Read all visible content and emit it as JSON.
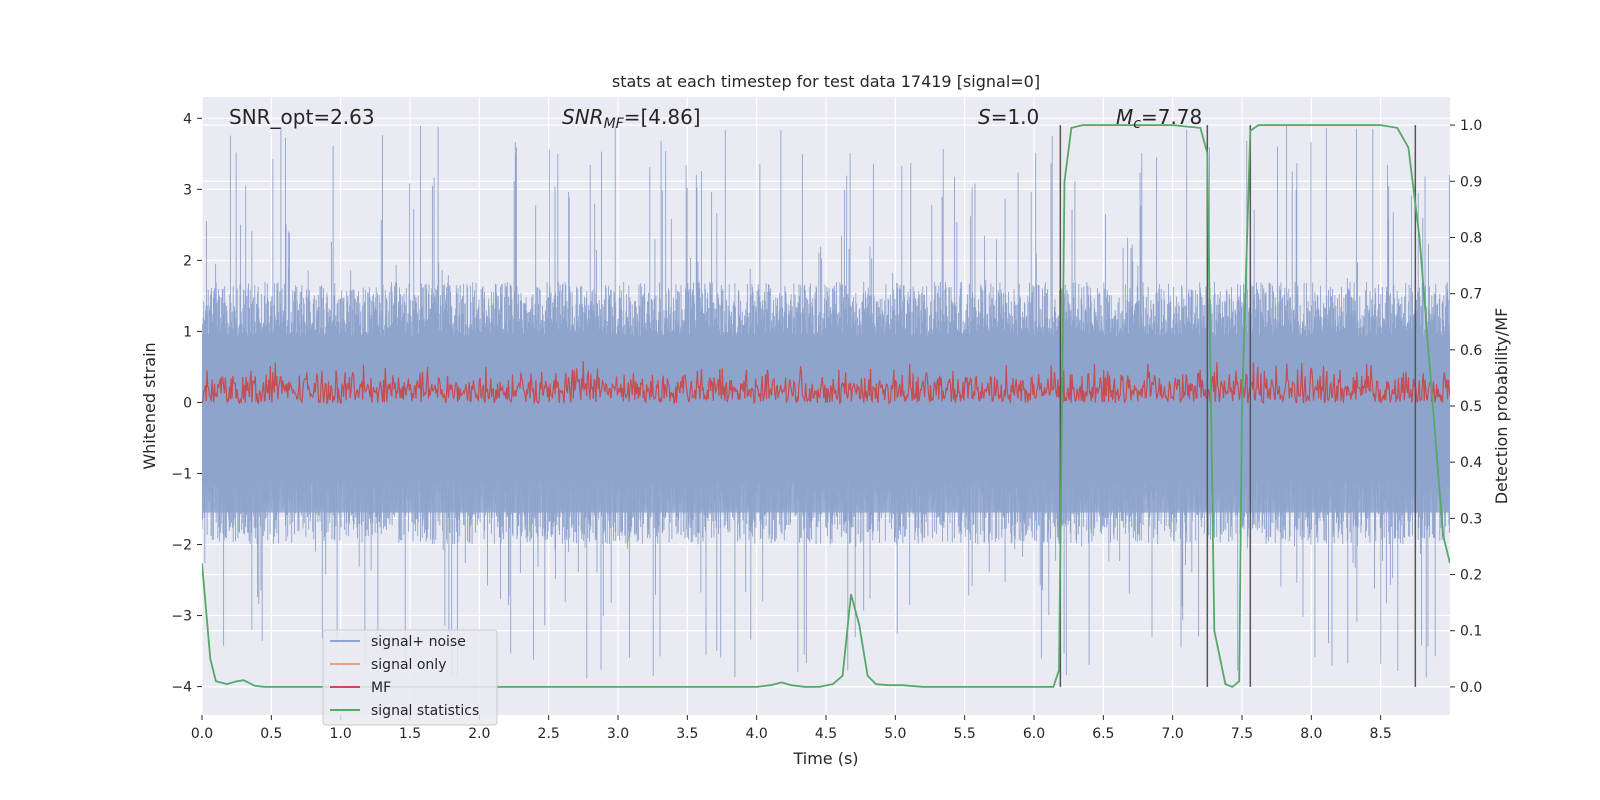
{
  "chart_data": {
    "type": "line",
    "title": "stats at each timestep for test data 17419 [signal=0]",
    "xlabel": "Time (s)",
    "ylabel": "Whitened strain",
    "y2label": "Detection probability/MF",
    "xlim": [
      0.0,
      9.0
    ],
    "ylim": [
      -4.4,
      4.3
    ],
    "y2lim": [
      -0.05,
      1.05
    ],
    "x_ticks": [
      "0.0",
      "0.5",
      "1.0",
      "1.5",
      "2.0",
      "2.5",
      "3.0",
      "3.5",
      "4.0",
      "4.5",
      "5.0",
      "5.5",
      "6.0",
      "6.5",
      "7.0",
      "7.5",
      "8.0",
      "8.5"
    ],
    "y_ticks": [
      "4",
      "3",
      "2",
      "1",
      "0",
      "−1",
      "−2",
      "−3",
      "−4"
    ],
    "y2_ticks": [
      "1.0",
      "0.9",
      "0.8",
      "0.7",
      "0.6",
      "0.5",
      "0.4",
      "0.3",
      "0.2",
      "0.1",
      "0.0"
    ],
    "grid": true,
    "legend_position": "lower-left",
    "annotations": {
      "snr_opt": "SNR_opt=2.63",
      "snr_mf_main": "SNR",
      "snr_mf_sub": "MF",
      "snr_mf_rest": "=[4.86]",
      "s_main": "S",
      "s_rest": "=1.0",
      "mc_main": "M",
      "mc_sub": "c",
      "mc_rest": "=7.78"
    },
    "series": [
      {
        "name": "signal+ noise",
        "color": "#8fa4cc",
        "amplitude_envelope": {
          "pos_typical": 1.7,
          "pos_peak": 3.9,
          "neg_typical": -2.0,
          "neg_peak": -3.9
        }
      },
      {
        "name": "signal only",
        "color": "#e8a688",
        "values": []
      },
      {
        "name": "MF",
        "color": "#c44e52",
        "band": [
          0.05,
          0.75
        ],
        "axis": "right"
      },
      {
        "name": "signal statistics",
        "color": "#55a868",
        "axis": "right",
        "x": [
          0.0,
          0.06,
          0.1,
          0.18,
          0.25,
          0.3,
          0.38,
          0.45,
          0.5,
          0.6,
          1.0,
          2.0,
          3.0,
          4.0,
          4.1,
          4.18,
          4.25,
          4.35,
          4.45,
          4.55,
          4.62,
          4.68,
          4.74,
          4.8,
          4.86,
          4.95,
          5.05,
          5.2,
          6.0,
          6.14,
          6.18,
          6.22,
          6.27,
          6.35,
          7.0,
          7.2,
          7.25,
          7.3,
          7.38,
          7.43,
          7.48,
          7.5,
          7.56,
          7.62,
          8.5,
          8.62,
          8.7,
          8.78,
          8.86,
          8.95,
          9.0
        ],
        "values": [
          0.22,
          0.05,
          0.01,
          0.005,
          0.01,
          0.012,
          0.002,
          0.0,
          0.0,
          0.0,
          0.0,
          0.0,
          0.0,
          0.0,
          0.003,
          0.008,
          0.003,
          0.0,
          0.0,
          0.005,
          0.02,
          0.165,
          0.11,
          0.02,
          0.005,
          0.003,
          0.003,
          0.0,
          0.0,
          0.0,
          0.03,
          0.9,
          0.995,
          1.0,
          1.0,
          0.995,
          0.95,
          0.1,
          0.005,
          0.0,
          0.01,
          0.5,
          0.99,
          1.0,
          1.0,
          0.995,
          0.96,
          0.8,
          0.55,
          0.27,
          0.22
        ]
      }
    ],
    "vertical_lines_x": [
      6.19,
      7.25,
      7.56,
      8.75
    ]
  }
}
